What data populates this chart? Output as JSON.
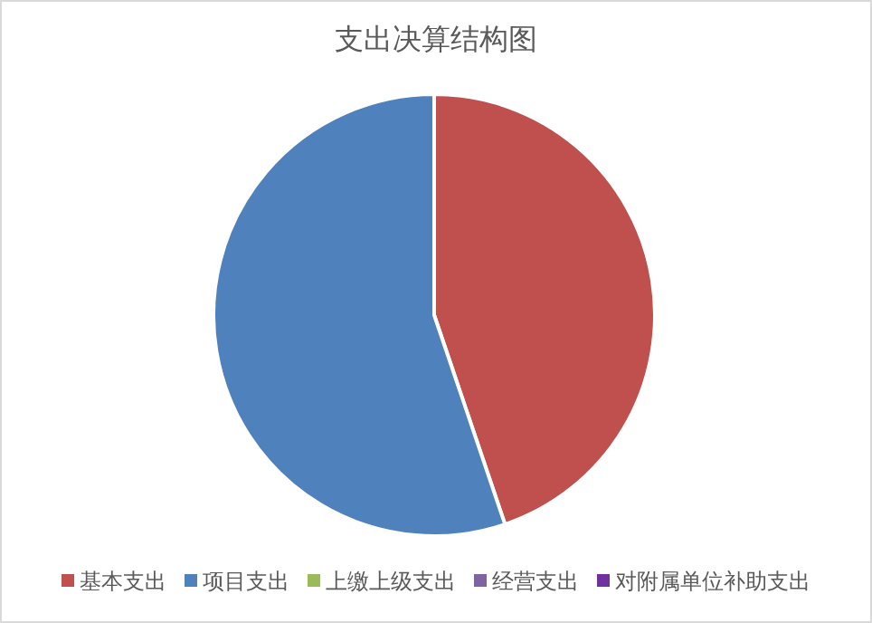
{
  "chart_data": {
    "type": "pie",
    "title": "支出决算结构图",
    "categories": [
      "基本支出",
      "项目支出",
      "上缴上级支出",
      "经营支出",
      "对附属单位补助支出"
    ],
    "values": [
      44.8,
      55.2,
      0,
      0,
      0
    ],
    "colors": [
      "#c0504d",
      "#4f81bd",
      "#9bbb59",
      "#8064a2",
      "#7030a0"
    ],
    "legend": "bottom"
  }
}
